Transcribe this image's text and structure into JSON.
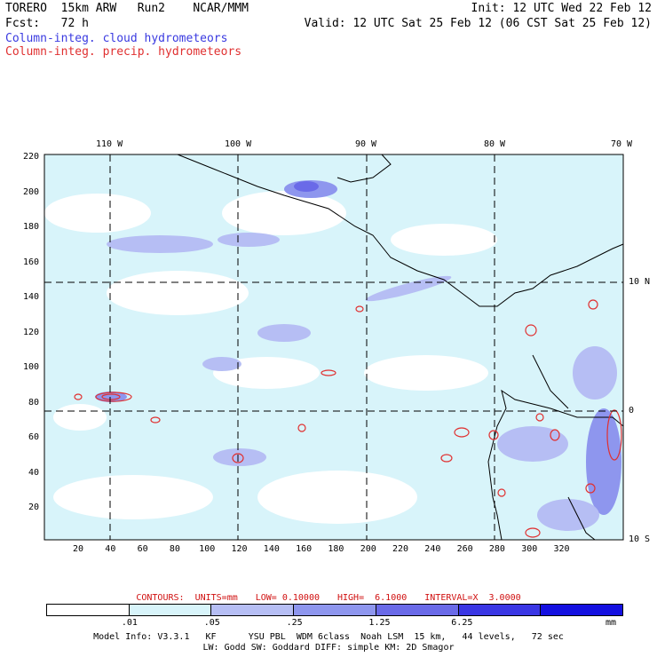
{
  "header": {
    "line1_left": "TORERO  15km ARW   Run2    NCAR/MMM",
    "line1_right": "Init: 12 UTC Wed 22 Feb 12",
    "line2_left": "Fcst:   72 h",
    "line2_right": "Valid: 12 UTC Sat 25 Feb 12 (06 CST Sat 25 Feb 12)"
  },
  "legend": {
    "cloud": "Column-integ. cloud hydrometeors",
    "precip": "Column-integ. precip. hydrometeors",
    "cloud_color": "#3a3ae0",
    "precip_color": "#e03030"
  },
  "map": {
    "top_lon_labels": [
      "110 W",
      "100 W",
      "90 W",
      "80 W",
      "70 W"
    ],
    "right_lat_labels": [
      "10 N",
      "0",
      "10 S"
    ],
    "x_ticks": [
      "20",
      "40",
      "60",
      "80",
      "100",
      "120",
      "140",
      "160",
      "180",
      "200",
      "220",
      "240",
      "260",
      "280",
      "300",
      "320"
    ],
    "y_ticks": [
      "20",
      "40",
      "60",
      "80",
      "100",
      "120",
      "140",
      "160",
      "180",
      "200",
      "220"
    ]
  },
  "contours": {
    "units": "CONTOURS:  UNITS=mm",
    "low": "LOW= 0.10000",
    "high": "HIGH=  6.1000",
    "interval": "INTERVAL=X  3.0000"
  },
  "colorbar": {
    "labels": [
      ".01",
      ".05",
      ".25",
      "1.25",
      "6.25"
    ],
    "unit": "mm",
    "colors": [
      "#ffffff",
      "#d8f4fa",
      "#b6bef4",
      "#8e96ee",
      "#6a6ae8",
      "#3a36e4",
      "#1410e0"
    ]
  },
  "model_info": {
    "line1": "Model Info: V3.3.1   KF      YSU PBL  WDM 6class  Noah LSM  15 km,   44 levels,   72 sec",
    "line2": "LW: Godd SW: Goddard DIFF: simple KM: 2D Smagor"
  }
}
